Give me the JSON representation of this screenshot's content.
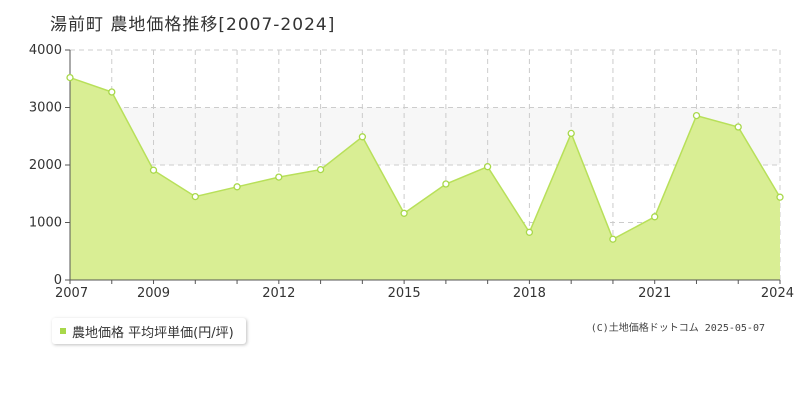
{
  "chart_data": {
    "type": "area",
    "title": "湯前町 農地価格推移[2007-2024]",
    "x": [
      2007,
      2008,
      2009,
      2010,
      2011,
      2012,
      2013,
      2014,
      2015,
      2016,
      2017,
      2018,
      2019,
      2020,
      2021,
      2022,
      2023,
      2024
    ],
    "series": [
      {
        "name": "農地価格 平均坪単価(円/坪)",
        "values": [
          3520,
          3270,
          1910,
          1450,
          1620,
          1790,
          1920,
          2490,
          1160,
          1670,
          1970,
          830,
          2550,
          710,
          1100,
          2860,
          2660,
          1440
        ]
      }
    ],
    "xticks": [
      "2007",
      "2009",
      "2012",
      "2015",
      "2018",
      "2021",
      "2024"
    ],
    "yticks": [
      "0",
      "1000",
      "2000",
      "3000",
      "4000"
    ],
    "xlim": [
      2007,
      2024
    ],
    "ylim": [
      0,
      4000
    ],
    "grid": true,
    "band": [
      2000,
      3000
    ],
    "colors": {
      "fill": "#d9ee94",
      "line": "#b8e05a",
      "marker": "#a8d84a",
      "grid": "#cccccc",
      "band": "#f7f7f7"
    }
  },
  "legend": {
    "label": "農地価格 平均坪単価(円/坪)"
  },
  "copyright": "(C)土地価格ドットコム 2025-05-07"
}
